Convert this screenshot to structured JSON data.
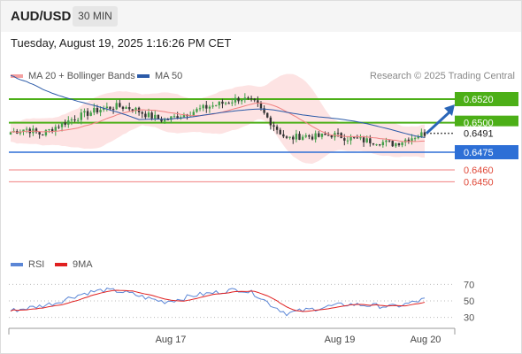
{
  "header": {
    "symbol": "AUD/USD",
    "timeframe": "30 MIN",
    "datetime": "Tuesday, August 19, 2025 1:16:26 PM CET"
  },
  "legend": {
    "ma20_label": "MA 20 + Bollinger Bands",
    "ma50_label": "MA 50",
    "research": "Research © 2025 Trading Central",
    "rsi_label": "RSI",
    "rsi_ma_label": "9MA"
  },
  "colors": {
    "ma20": "#f08080",
    "ma50": "#2b5aa8",
    "bands_fill": "#fde3e3",
    "resistance": "#4caf17",
    "support": "#2d6fd6",
    "target": "#f08080",
    "arrow": "#2a66b8",
    "candle_up": "#44a04a",
    "candle_down": "#333333",
    "rsi": "#5b86d6",
    "rsi_ma": "#e02020"
  },
  "chart_data": {
    "type": "candlestick",
    "ylim": [
      0.6439,
      0.6529
    ],
    "x_tick_labels": [
      "Aug 17",
      "Aug 19",
      "Aug 20"
    ],
    "levels": [
      {
        "value": 0.652,
        "label": "0.6520",
        "kind": "resistance"
      },
      {
        "value": 0.65,
        "label": "0.6500",
        "kind": "resistance"
      },
      {
        "value": 0.6491,
        "label": "0.6491",
        "kind": "last"
      },
      {
        "value": 0.6475,
        "label": "0.6475",
        "kind": "support"
      },
      {
        "value": 0.646,
        "label": "0.6460",
        "kind": "target"
      },
      {
        "value": 0.645,
        "label": "0.6450",
        "kind": "target"
      }
    ],
    "price_path": [
      0.6492,
      0.6495,
      0.649,
      0.6497,
      0.6503,
      0.6508,
      0.6512,
      0.6514,
      0.6512,
      0.6506,
      0.6502,
      0.6506,
      0.651,
      0.6514,
      0.6517,
      0.6521,
      0.6516,
      0.65,
      0.6486,
      0.6489,
      0.6488,
      0.649,
      0.6487,
      0.6485,
      0.6484,
      0.6482,
      0.6487,
      0.6491
    ],
    "rsi": {
      "levels": [
        70,
        50,
        30
      ],
      "ylim": [
        20,
        80
      ],
      "values": [
        38,
        41,
        44,
        48,
        55,
        60,
        63,
        62,
        58,
        53,
        49,
        52,
        57,
        59,
        62,
        64,
        58,
        45,
        35,
        38,
        41,
        44,
        46,
        45,
        44,
        43,
        47,
        52
      ]
    }
  }
}
